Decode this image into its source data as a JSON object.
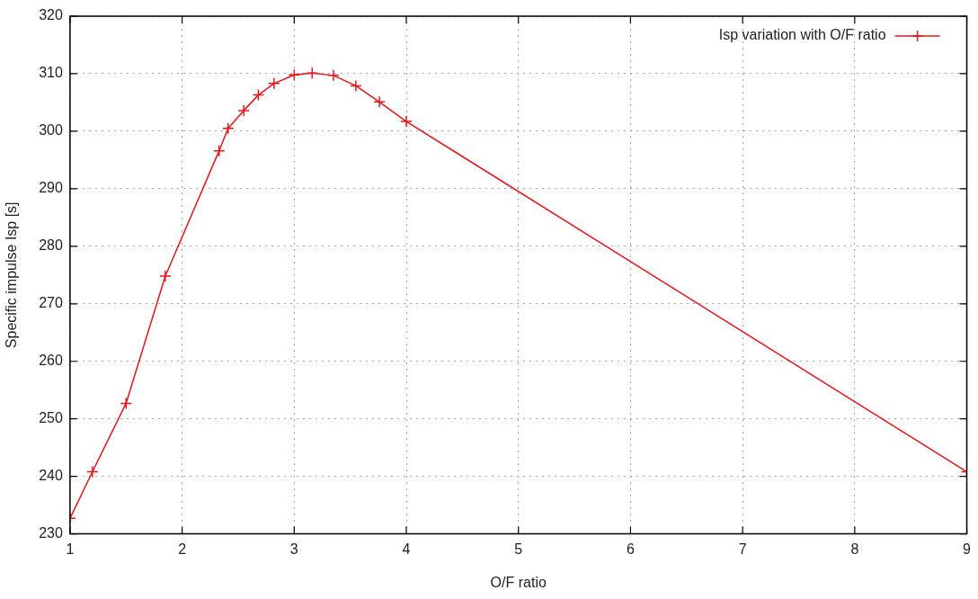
{
  "chart_data": {
    "type": "line",
    "xlabel": "O/F ratio",
    "ylabel": "Specific impulse Isp [s]",
    "xlim": [
      1,
      9
    ],
    "xticks": [
      1,
      2,
      3,
      4,
      5,
      6,
      7,
      8,
      9
    ],
    "ylim": [
      230,
      320
    ],
    "yticks": [
      230,
      240,
      250,
      260,
      270,
      280,
      290,
      300,
      310,
      320
    ],
    "grid": true,
    "legend": "top right",
    "marker": "cross",
    "line_style": "solid",
    "series": [
      {
        "name": "Isp variation with O/F ratio",
        "color": "#e8141c",
        "x": [
          1,
          1.2,
          1.5,
          1.85,
          2.33,
          2.41,
          2.55,
          2.68,
          2.82,
          3.0,
          3.16,
          3.35,
          3.55,
          3.76,
          4.0,
          9
        ],
        "values": [
          232.7,
          240.8,
          252.7,
          274.8,
          296.6,
          300.5,
          303.6,
          306.3,
          308.3,
          309.8,
          310.1,
          309.7,
          307.9,
          305.1,
          301.7,
          240.8
        ]
      }
    ]
  }
}
